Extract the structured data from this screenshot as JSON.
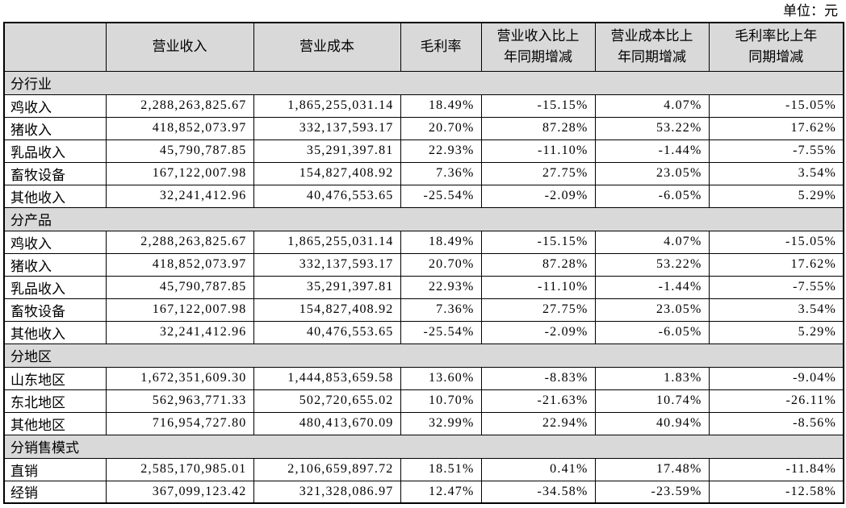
{
  "unit_label": "单位：元",
  "table": {
    "columns": [
      "",
      "营业收入",
      "营业成本",
      "毛利率",
      "营业收入比上\n年同期增减",
      "营业成本比上\n年同期增减",
      "毛利率比上年\n同期增减"
    ],
    "sections": [
      {
        "title": "分行业",
        "rows": [
          {
            "label": "鸡收入",
            "values": [
              "2,288,263,825.67",
              "1,865,255,031.14",
              "18.49%",
              "-15.15%",
              "4.07%",
              "-15.05%"
            ]
          },
          {
            "label": "猪收入",
            "values": [
              "418,852,073.97",
              "332,137,593.17",
              "20.70%",
              "87.28%",
              "53.22%",
              "17.62%"
            ]
          },
          {
            "label": "乳品收入",
            "values": [
              "45,790,787.85",
              "35,291,397.81",
              "22.93%",
              "-11.10%",
              "-1.44%",
              "-7.55%"
            ]
          },
          {
            "label": "畜牧设备",
            "values": [
              "167,122,007.98",
              "154,827,408.92",
              "7.36%",
              "27.75%",
              "23.05%",
              "3.54%"
            ]
          },
          {
            "label": "其他收入",
            "values": [
              "32,241,412.96",
              "40,476,553.65",
              "-25.54%",
              "-2.09%",
              "-6.05%",
              "5.29%"
            ]
          }
        ]
      },
      {
        "title": "分产品",
        "rows": [
          {
            "label": "鸡收入",
            "values": [
              "2,288,263,825.67",
              "1,865,255,031.14",
              "18.49%",
              "-15.15%",
              "4.07%",
              "-15.05%"
            ]
          },
          {
            "label": "猪收入",
            "values": [
              "418,852,073.97",
              "332,137,593.17",
              "20.70%",
              "87.28%",
              "53.22%",
              "17.62%"
            ]
          },
          {
            "label": "乳品收入",
            "values": [
              "45,790,787.85",
              "35,291,397.81",
              "22.93%",
              "-11.10%",
              "-1.44%",
              "-7.55%"
            ]
          },
          {
            "label": "畜牧设备",
            "values": [
              "167,122,007.98",
              "154,827,408.92",
              "7.36%",
              "27.75%",
              "23.05%",
              "3.54%"
            ]
          },
          {
            "label": "其他收入",
            "values": [
              "32,241,412.96",
              "40,476,553.65",
              "-25.54%",
              "-2.09%",
              "-6.05%",
              "5.29%"
            ]
          }
        ]
      },
      {
        "title": "分地区",
        "rows": [
          {
            "label": "山东地区",
            "values": [
              "1,672,351,609.30",
              "1,444,853,659.58",
              "13.60%",
              "-8.83%",
              "1.83%",
              "-9.04%"
            ]
          },
          {
            "label": "东北地区",
            "values": [
              "562,963,771.33",
              "502,720,655.02",
              "10.70%",
              "-21.63%",
              "10.74%",
              "-26.11%"
            ]
          },
          {
            "label": "其他地区",
            "values": [
              "716,954,727.80",
              "480,413,670.09",
              "32.99%",
              "22.94%",
              "40.94%",
              "-8.56%"
            ]
          }
        ]
      },
      {
        "title": "分销售模式",
        "rows": [
          {
            "label": "直销",
            "values": [
              "2,585,170,985.01",
              "2,106,659,897.72",
              "18.51%",
              "0.41%",
              "17.48%",
              "-11.84%"
            ]
          },
          {
            "label": "经销",
            "values": [
              "367,099,123.42",
              "321,328,086.97",
              "12.47%",
              "-34.58%",
              "-23.59%",
              "-12.58%"
            ]
          }
        ]
      }
    ]
  }
}
